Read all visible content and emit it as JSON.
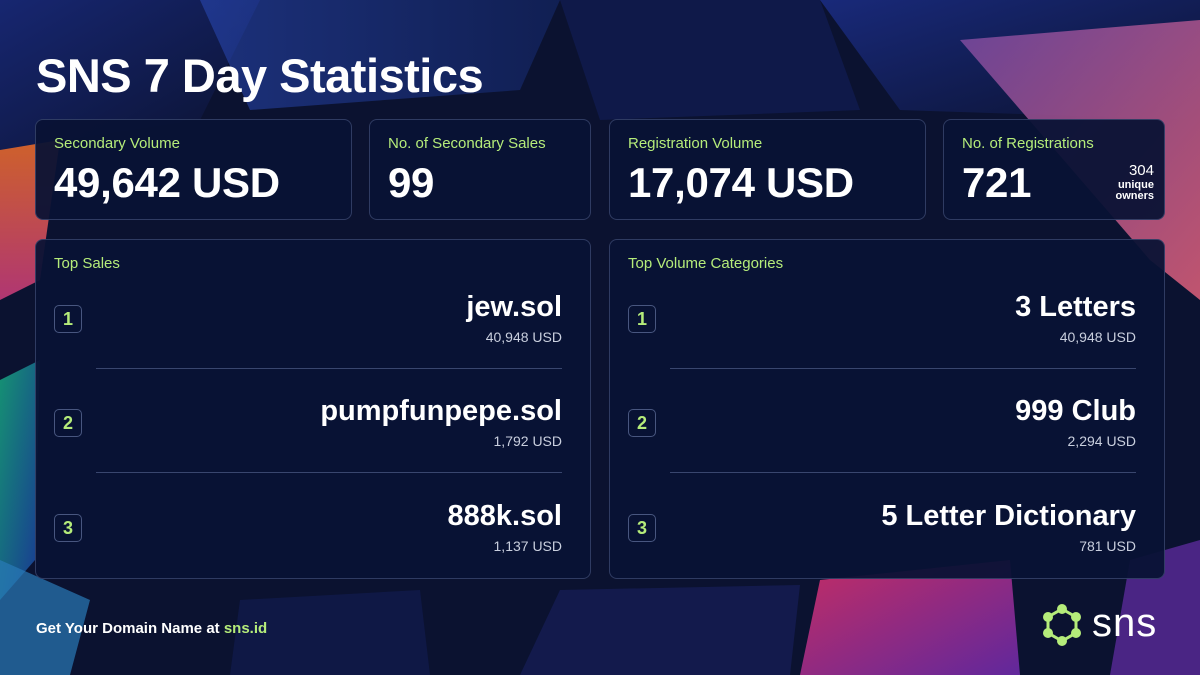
{
  "title": "SNS 7 Day Statistics",
  "stats": {
    "secondary_volume": {
      "label": "Secondary Volume",
      "value": "49,642 USD"
    },
    "secondary_sales": {
      "label": "No. of Secondary Sales",
      "value": "99"
    },
    "registration_volume": {
      "label": "Registration Volume",
      "value": "17,074 USD"
    },
    "registrations": {
      "label": "No. of Registrations",
      "value": "721",
      "owners_count": "304",
      "owners_label_1": "unique",
      "owners_label_2": "owners"
    }
  },
  "top_sales": {
    "label": "Top Sales",
    "items": [
      {
        "rank": "1",
        "name": "jew.sol",
        "value": "40,948 USD"
      },
      {
        "rank": "2",
        "name": "pumpfunpepe.sol",
        "value": "1,792 USD"
      },
      {
        "rank": "3",
        "name": "888k.sol",
        "value": "1,137 USD"
      }
    ]
  },
  "top_categories": {
    "label": "Top Volume Categories",
    "items": [
      {
        "rank": "1",
        "name": "3 Letters",
        "value": "40,948 USD"
      },
      {
        "rank": "2",
        "name": "999 Club",
        "value": "2,294 USD"
      },
      {
        "rank": "3",
        "name": "5 Letter Dictionary",
        "value": "781 USD"
      }
    ]
  },
  "footer": {
    "text": "Get Your Domain Name at ",
    "link": "sns.id"
  },
  "logo": {
    "text": "sns",
    "icon": "sns-hexagon-icon"
  },
  "colors": {
    "accent": "#b5ec7a",
    "background": "#0b1230",
    "card": "#091234"
  }
}
